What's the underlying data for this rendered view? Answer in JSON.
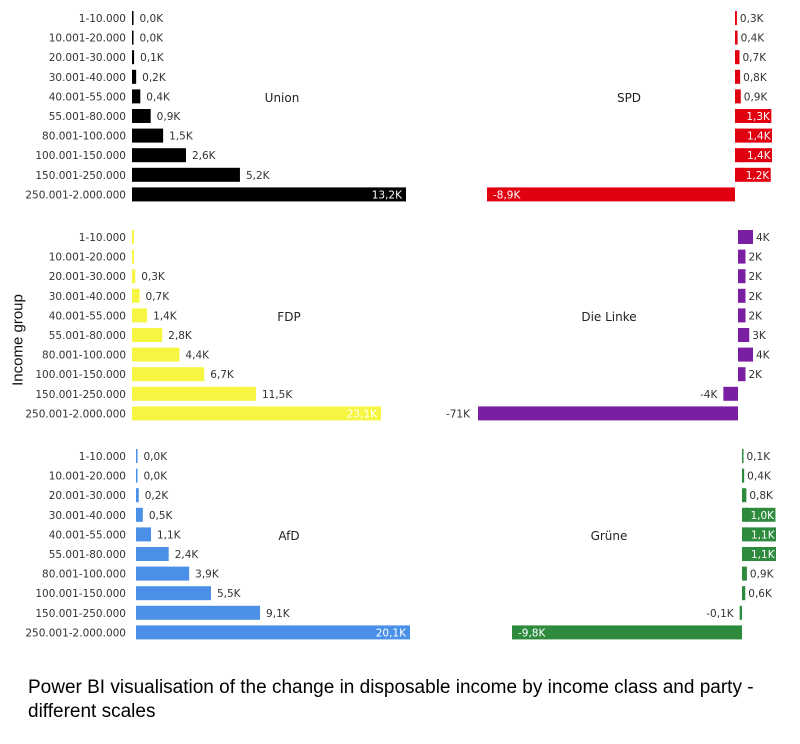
{
  "chart_data": {
    "type": "bar",
    "orientation": "horizontal",
    "ylabel": "Income group",
    "categories": [
      "1-10.000",
      "10.001-20.000",
      "20.001-30.000",
      "30.001-40.000",
      "40.001-55.000",
      "55.001-80.000",
      "80.001-100.000",
      "100.001-150.000",
      "150.001-250.000",
      "250.001-2.000.000"
    ],
    "panels": [
      {
        "name": "Union",
        "color": "#000000",
        "side": "left",
        "scale_max": 13.2,
        "values": [
          0.0,
          0.0,
          0.1,
          0.2,
          0.4,
          0.9,
          1.5,
          2.6,
          5.2,
          13.2
        ],
        "labels": [
          "0,0K",
          "0,0K",
          "0,1K",
          "0,2K",
          "0,4K",
          "0,9K",
          "1,5K",
          "2,6K",
          "5,2K",
          "13,2K"
        ]
      },
      {
        "name": "SPD",
        "color": "#e1000f",
        "side": "right",
        "scale_min": -8.9,
        "scale_max": 1.4,
        "values": [
          0.3,
          0.4,
          0.7,
          0.8,
          0.9,
          1.3,
          1.4,
          1.4,
          1.2,
          -8.9
        ],
        "labels": [
          "0,3K",
          "0,4K",
          "0,7K",
          "0,8K",
          "0,9K",
          "1,3K",
          "1,4K",
          "1,4K",
          "1,2K",
          "-8,9K"
        ]
      },
      {
        "name": "FDP",
        "color": "#f5f542",
        "side": "left",
        "scale_max": 23.1,
        "values": [
          0.1,
          0.0,
          0.3,
          0.7,
          1.4,
          2.8,
          4.4,
          6.7,
          11.5,
          23.1
        ],
        "labels": [
          "",
          "",
          "0,3K",
          "0,7K",
          "1,4K",
          "2,8K",
          "4,4K",
          "6,7K",
          "11,5K",
          "23,1K"
        ]
      },
      {
        "name": "Die Linke",
        "color": "#7b1fa2",
        "side": "right",
        "scale_min": -71,
        "scale_max": 4,
        "values": [
          4,
          2,
          2,
          2,
          2,
          3,
          4,
          2,
          -4,
          -71
        ],
        "labels": [
          "4K",
          "2K",
          "2K",
          "2K",
          "2K",
          "3K",
          "4K",
          "2K",
          "-4K",
          "-71K"
        ]
      },
      {
        "name": "AfD",
        "color": "#4a90e8",
        "side": "left",
        "scale_max": 20.1,
        "values": [
          0.0,
          0.0,
          0.2,
          0.5,
          1.1,
          2.4,
          3.9,
          5.5,
          9.1,
          20.1
        ],
        "labels": [
          "0,0K",
          "0,0K",
          "0,2K",
          "0,5K",
          "1,1K",
          "2,4K",
          "3,9K",
          "5,5K",
          "9,1K",
          "20,1K"
        ]
      },
      {
        "name": "Grüne",
        "color": "#2e8b3e",
        "side": "right",
        "scale_min": -9.8,
        "scale_max": 1.1,
        "values": [
          0.1,
          0.4,
          0.8,
          1.0,
          1.1,
          1.1,
          0.9,
          0.6,
          -0.1,
          -9.8
        ],
        "labels": [
          "0,1K",
          "0,4K",
          "0,8K",
          "1,0K",
          "1,1K",
          "1,1K",
          "0,9K",
          "0,6K",
          "-0,1K",
          "-9,8K"
        ]
      }
    ]
  },
  "caption": "Power BI visualisation of the change in disposable income by income class and party - different scales"
}
